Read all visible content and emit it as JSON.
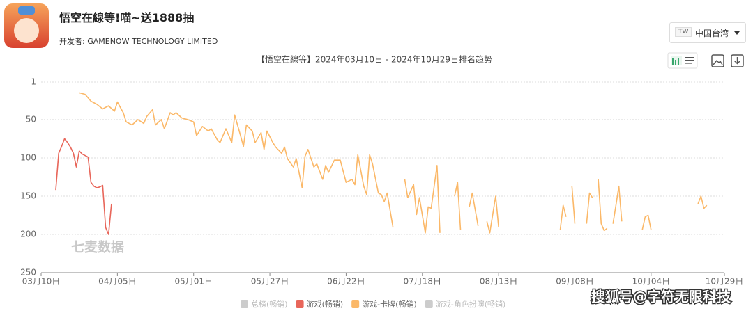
{
  "header": {
    "app_title": "悟空在線等!喵~送1888抽",
    "developer": "开发者: GAMENOW TECHNOLOGY LIMITED",
    "region_code": "TW",
    "region": "中国台湾"
  },
  "chart_data": {
    "type": "line",
    "title": "【悟空在線等】2024年03月10日 - 2024年10月29日排名趋势",
    "watermark": "七麦数据",
    "xlim": [
      0,
      233
    ],
    "xticks": [
      {
        "value": 0,
        "label": "03月10日"
      },
      {
        "value": 26,
        "label": "04月05日"
      },
      {
        "value": 52,
        "label": "05月01日"
      },
      {
        "value": 78,
        "label": "05月27日"
      },
      {
        "value": 104,
        "label": "06月22日"
      },
      {
        "value": 130,
        "label": "07月18日"
      },
      {
        "value": 156,
        "label": "08月13日"
      },
      {
        "value": 182,
        "label": "09月08日"
      },
      {
        "value": 208,
        "label": "10月04日"
      },
      {
        "value": 233,
        "label": "10月29日"
      }
    ],
    "ylim": [
      250,
      1
    ],
    "yticks": [
      1,
      50,
      100,
      150,
      200,
      250
    ],
    "grid": true,
    "legend_position": "bottom",
    "series": [
      {
        "name": "总榜(畅销)",
        "color": "#cccccc",
        "hidden": true,
        "x": [],
        "values": []
      },
      {
        "name": "游戏(畅销)",
        "color": "#e8665a",
        "hidden": false,
        "x": [
          5,
          6,
          7,
          8,
          9,
          10,
          11,
          12,
          13,
          14,
          15,
          16,
          17,
          18,
          19,
          20,
          21,
          22,
          23,
          24
        ],
        "values": [
          142,
          94,
          85,
          75,
          80,
          86,
          94,
          112,
          91,
          95,
          97,
          99,
          132,
          137,
          139,
          138,
          136,
          191,
          200,
          160
        ]
      },
      {
        "name": "游戏-卡牌(畅销)",
        "color": "#fbb868",
        "hidden": false,
        "x": [
          13,
          15,
          17,
          19,
          21,
          23,
          25,
          26,
          28,
          29,
          31,
          33,
          35,
          36,
          38,
          39,
          41,
          42,
          44,
          45,
          46,
          48,
          50,
          52,
          53,
          55,
          57,
          58,
          60,
          61,
          63,
          65,
          66,
          68,
          69,
          70,
          72,
          73,
          75,
          76,
          77,
          79,
          80,
          82,
          83,
          84,
          86,
          87,
          89,
          90,
          91,
          93,
          94,
          96,
          97,
          98,
          100,
          101,
          102,
          104,
          106,
          107,
          108,
          110,
          111,
          112,
          113,
          115,
          116,
          117,
          118,
          120,
          122,
          124,
          125,
          127,
          128,
          129,
          131,
          132,
          133,
          135,
          136,
          138,
          141,
          142,
          143,
          145,
          146,
          147,
          149,
          151,
          152,
          153,
          155,
          156,
          170,
          177,
          178,
          179,
          180,
          181,
          182,
          184,
          186,
          187,
          188,
          189,
          190,
          191,
          192,
          193,
          194,
          195,
          196,
          197,
          198,
          200,
          205,
          206,
          207,
          208,
          215,
          224,
          225,
          226,
          227
        ],
        "values": [
          15,
          17,
          26,
          30,
          36,
          32,
          39,
          27,
          41,
          53,
          57,
          50,
          55,
          46,
          37,
          57,
          50,
          62,
          41,
          44,
          41,
          48,
          50,
          53,
          71,
          59,
          65,
          62,
          76,
          80,
          62,
          80,
          44,
          71,
          85,
          57,
          65,
          80,
          67,
          89,
          65,
          80,
          86,
          94,
          86,
          101,
          112,
          101,
          139,
          98,
          89,
          112,
          108,
          128,
          110,
          119,
          103,
          103,
          103,
          132,
          128,
          135,
          96,
          137,
          148,
          96,
          108,
          146,
          148,
          157,
          146,
          191,
          null,
          128,
          152,
          135,
          174,
          152,
          198,
          164,
          166,
          110,
          198,
          null,
          150,
          132,
          194,
          null,
          164,
          146,
          189,
          null,
          183,
          198,
          150,
          190,
          null,
          194,
          162,
          177,
          null,
          137,
          186,
          null,
          186,
          146,
          152,
          null,
          128,
          186,
          195,
          192,
          null,
          186,
          162,
          137,
          183,
          null,
          194,
          177,
          175,
          194,
          null,
          160,
          150,
          166,
          162
        ]
      },
      {
        "name": "游戏-角色扮演(畅销)",
        "color": "#cccccc",
        "hidden": true,
        "x": [],
        "values": []
      }
    ]
  },
  "footer_watermark": "搜狐号@字符无限科技"
}
